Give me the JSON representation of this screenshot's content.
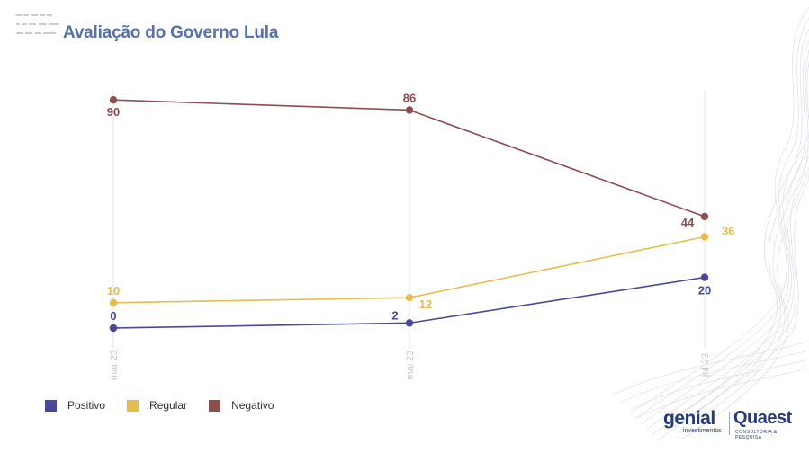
{
  "header": {
    "title": "Avaliação do Governo Lula"
  },
  "brand": {
    "genial": "genial",
    "genial_sub": "investimentos",
    "quaest": "Quaest",
    "quaest_sub": "CONSULTORIA & PESQUISA"
  },
  "colors": {
    "positivo": "#4a4a94",
    "regular": "#e5bd4f",
    "negativo": "#8e4e4f",
    "title": "#5571a8",
    "gridline": "#e3e3e3",
    "tick": "#c8c8c8"
  },
  "chart_data": {
    "type": "line",
    "title": "Avaliação do Governo Lula",
    "categories": [
      "mar 23",
      "mai 23",
      "jul 23"
    ],
    "series": [
      {
        "name": "Positivo",
        "values": [
          0,
          2,
          20
        ],
        "color": "#4a4a94"
      },
      {
        "name": "Regular",
        "values": [
          10,
          12,
          36
        ],
        "color": "#e5bd4f"
      },
      {
        "name": "Negativo",
        "values": [
          90,
          86,
          44
        ],
        "color": "#8e4e4f"
      }
    ],
    "legend_position": "bottom-left",
    "grid": "vertical"
  }
}
